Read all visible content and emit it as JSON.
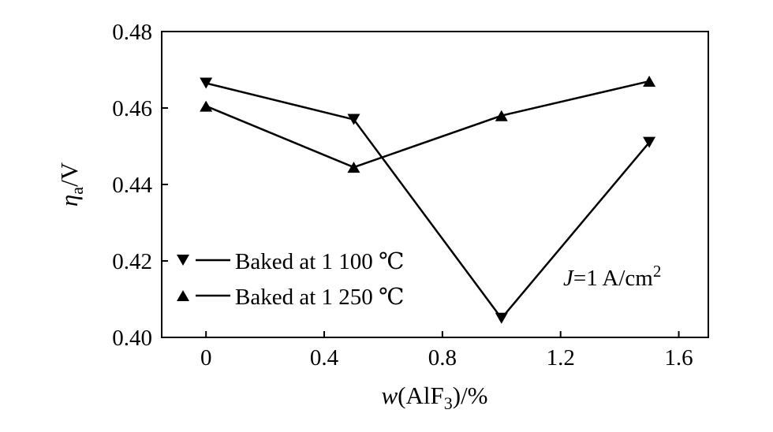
{
  "chart_data": {
    "type": "line",
    "xlabel_prefix": "w",
    "xlabel_main": "(AlF",
    "xlabel_sub": "3",
    "xlabel_suffix": ")/%",
    "ylabel_main": "η",
    "ylabel_sub": "a",
    "ylabel_suffix": "/V",
    "xlim": [
      -0.15,
      1.7
    ],
    "ylim": [
      0.4,
      0.48
    ],
    "xticks": [
      0,
      0.4,
      0.8,
      1.2,
      1.6
    ],
    "xtick_labels": [
      "0",
      "0.4",
      "0.8",
      "1.2",
      "1.6"
    ],
    "yticks": [
      0.4,
      0.42,
      0.44,
      0.46,
      0.48
    ],
    "ytick_labels": [
      "0.40",
      "0.42",
      "0.44",
      "0.46",
      "0.48"
    ],
    "series": [
      {
        "name": "Baked at 1 100 ℃",
        "marker": "triangle-down",
        "x": [
          0,
          0.5,
          1.0,
          1.5
        ],
        "y": [
          0.4665,
          0.457,
          0.405,
          0.451
        ]
      },
      {
        "name": "Baked at 1 250 ℃",
        "marker": "triangle-up",
        "x": [
          0,
          0.5,
          1.0,
          1.5
        ],
        "y": [
          0.4605,
          0.4445,
          0.458,
          0.467
        ]
      }
    ],
    "legend_placement": "bottom-left",
    "annotation_italic": "J",
    "annotation_main": "=1 A/cm",
    "annotation_sup": "2",
    "grid": false
  }
}
